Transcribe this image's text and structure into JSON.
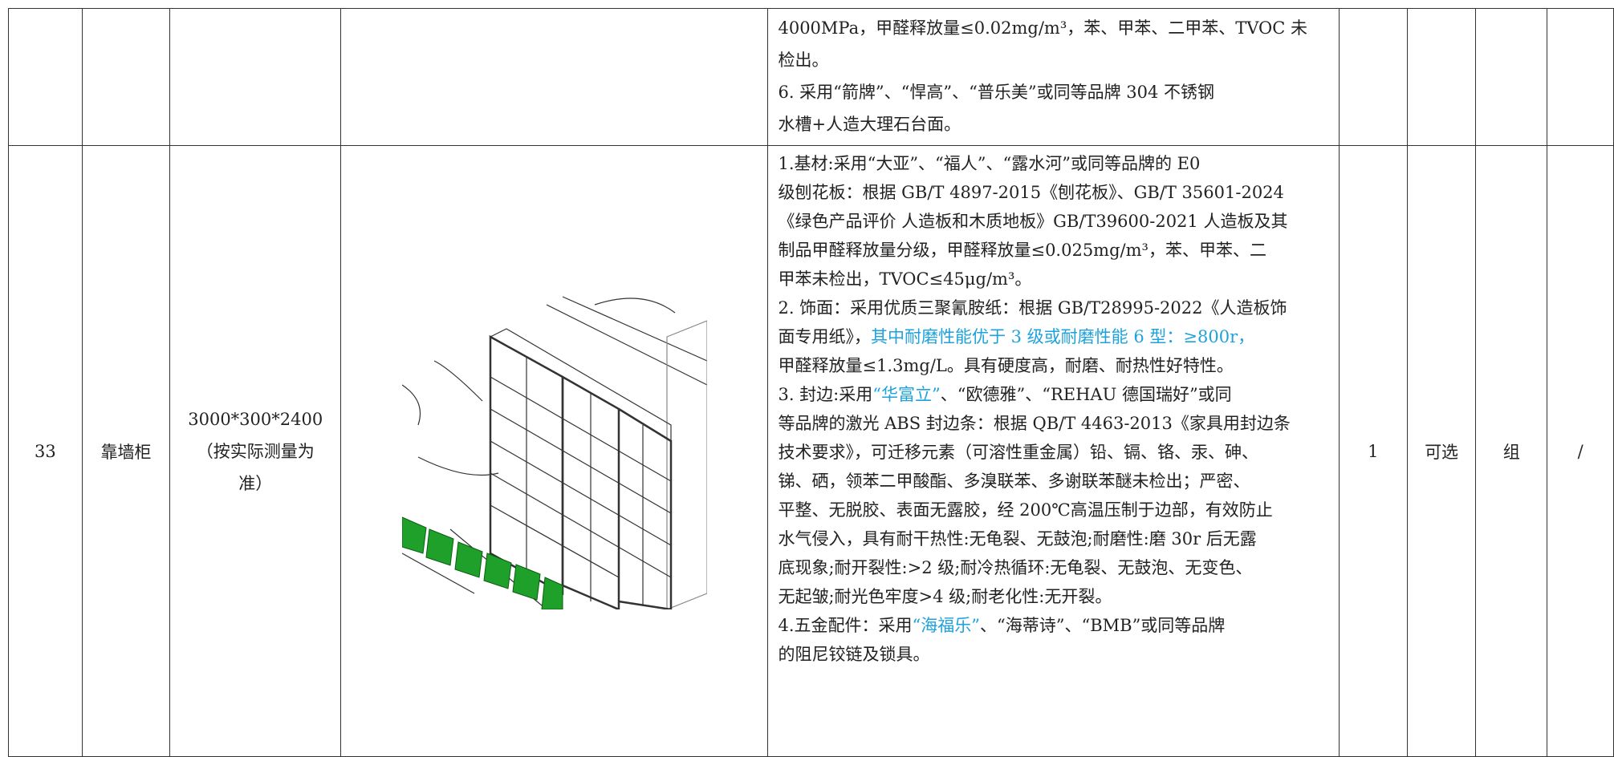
{
  "highlight_color": "#1ea2dc",
  "rows": [
    {
      "cells": [
        "",
        "",
        "",
        ""
      ],
      "description": [
        "4000MPa，甲醛释放量≤0.02mg/m³，苯、甲苯、二甲苯、TVOC 未",
        "检出。",
        "6. 采用“箭牌”、“悍高”、“普乐美”或同等品牌 304 不锈钢",
        "水槽+人造大理石台面。"
      ],
      "tail": [
        "",
        "",
        "",
        ""
      ]
    },
    {
      "cells": [
        "33",
        "靠墙柜",
        "3000*300*2400（按实际测量为准）",
        ""
      ],
      "description": [
        "1.基材:采用“大亚”、“福人”、“露水河”或同等品牌的 E0",
        "级刨花板：根据 GB/T 4897-2015《刨花板》、GB/T 35601-2024",
        "《绿色产品评价 人造板和木质地板》GB/T39600-2021 人造板及其",
        "制品甲醛释放量分级，甲醛释放量≤0.025mg/m³，苯、甲苯、二",
        "甲苯未检出，TVOC≤45μg/m³。",
        "2. 饰面：采用优质三聚氰胺纸：根据 GB/T28995-2022《人造板饰",
        [
          "面专用纸》，",
          {
            "text": "其中耐磨性能优于 3 级或耐磨性能 6 型：≥800r，",
            "highlight": true
          }
        ],
        "甲醛释放量≤1.3mg/L。具有硬度高，耐磨、耐热性好特性。",
        [
          "3. 封边:采用",
          {
            "text": "“华富立”",
            "highlight": true
          },
          "、“欧德雅”、“REHAU 德国瑞好”或同"
        ],
        "等品牌的激光 ABS 封边条：根据 QB/T 4463-2013《家具用封边条",
        "技术要求》，可迁移元素（可溶性重金属）铅、镉、铬、汞、砷、",
        "锑、硒，领苯二甲酸酯、多溴联苯、多谢联苯醚未检出；严密、",
        "平整、无脱胶、表面无露胶，经 200℃高温压制于边部，有效防止",
        "水气侵入，具有耐干热性:无龟裂、无鼓泡;耐磨性:磨 30r 后无露",
        "底现象;耐开裂性:>2 级;耐冷热循环:无龟裂、无鼓泡、无变色、",
        "无起皱;耐光色牢度>4 级;耐老化性:无开裂。",
        [
          "4.五金配件：采用",
          {
            "text": "“海福乐”",
            "highlight": true
          },
          "、“海蒂诗”、“BMB”或同等品牌"
        ],
        "的阻尼铰链及锁具。"
      ],
      "tail": [
        "1",
        "可选",
        "组",
        "/"
      ]
    }
  ]
}
